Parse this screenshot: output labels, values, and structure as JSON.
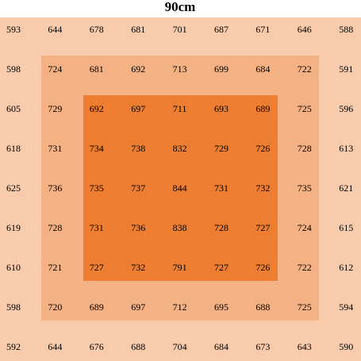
{
  "title": "90cm",
  "table": {
    "rows": [
      [
        "593",
        "644",
        "678",
        "681",
        "701",
        "687",
        "671",
        "646",
        "588"
      ],
      [
        "598",
        "724",
        "681",
        "692",
        "713",
        "699",
        "684",
        "722",
        "591"
      ],
      [
        "605",
        "729",
        "692",
        "697",
        "711",
        "693",
        "689",
        "725",
        "596"
      ],
      [
        "618",
        "731",
        "734",
        "738",
        "832",
        "729",
        "726",
        "728",
        "613"
      ],
      [
        "625",
        "736",
        "735",
        "737",
        "844",
        "731",
        "732",
        "735",
        "621"
      ],
      [
        "619",
        "728",
        "731",
        "736",
        "838",
        "728",
        "727",
        "724",
        "615"
      ],
      [
        "610",
        "721",
        "727",
        "732",
        "791",
        "727",
        "726",
        "722",
        "612"
      ],
      [
        "598",
        "720",
        "689",
        "697",
        "712",
        "695",
        "688",
        "725",
        "594"
      ],
      [
        "592",
        "644",
        "676",
        "688",
        "704",
        "684",
        "673",
        "643",
        "590"
      ]
    ]
  }
}
